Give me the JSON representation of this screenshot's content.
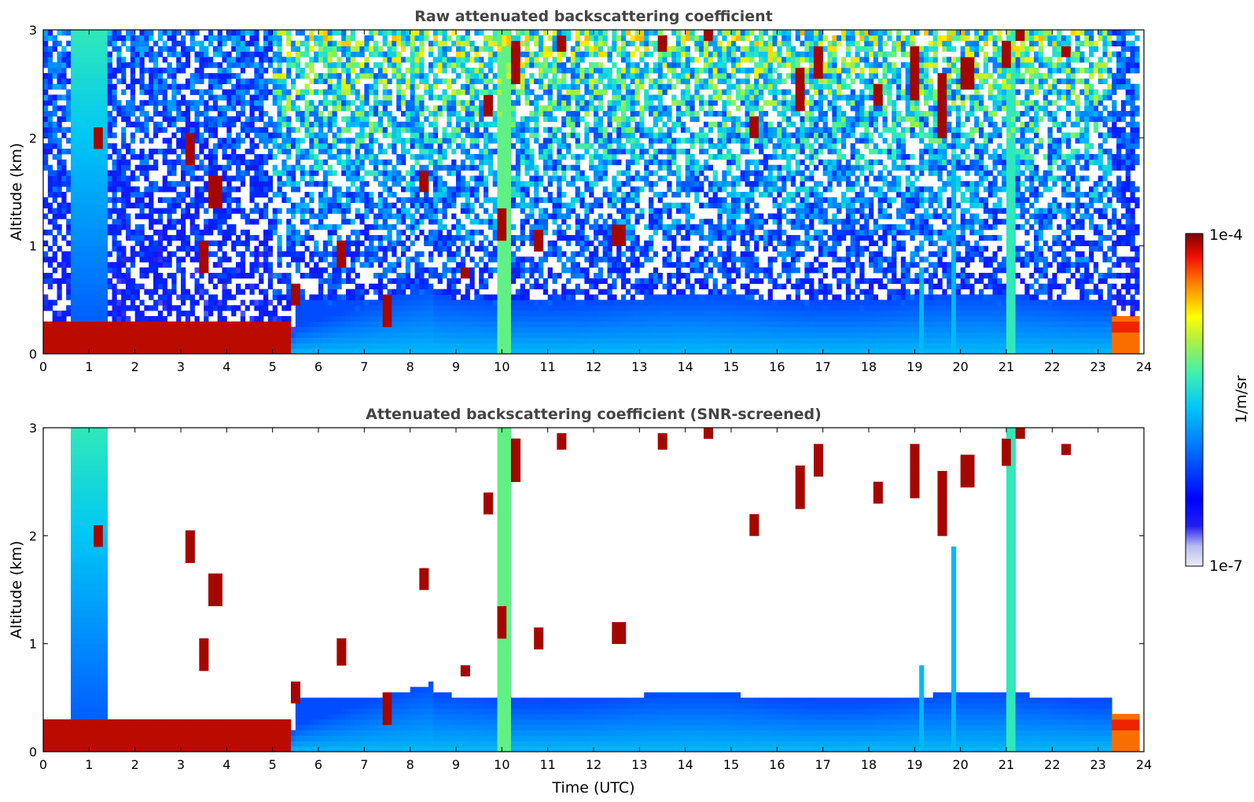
{
  "chart_data": [
    {
      "type": "heatmap",
      "title": "Raw attenuated backscattering coefficient",
      "xlabel": "",
      "ylabel": "Altitude (km)",
      "xlim": [
        0,
        24
      ],
      "ylim": [
        0,
        3
      ],
      "xticks": [
        "0",
        "1",
        "2",
        "3",
        "4",
        "5",
        "6",
        "7",
        "8",
        "9",
        "10",
        "11",
        "12",
        "13",
        "14",
        "15",
        "16",
        "17",
        "18",
        "19",
        "20",
        "21",
        "22",
        "23",
        "24"
      ],
      "yticks": [
        "0",
        "1",
        "2",
        "3"
      ],
      "screened": false,
      "layers": [
        {
          "kind": "surface-layer",
          "t_start": 0,
          "t_end": 5.4,
          "z_top": 0.3,
          "level": 0.95
        },
        {
          "kind": "aerosol-plume",
          "t_start": 0.65,
          "t_end": 1.35,
          "z_top": 3.0,
          "level": 0.45
        },
        {
          "kind": "aerosol-boundary",
          "t_start": 5.5,
          "t_end": 23.3,
          "z_top": 0.5,
          "level": 0.3
        },
        {
          "kind": "cloud-column",
          "t_start": 9.95,
          "t_end": 10.2,
          "z_top": 3.0,
          "level": 0.6
        },
        {
          "kind": "cloud-column",
          "t_start": 19.1,
          "t_end": 19.2,
          "z_top": 0.8,
          "level": 0.45
        },
        {
          "kind": "cloud-column",
          "t_start": 19.8,
          "t_end": 19.95,
          "z_top": 1.9,
          "level": 0.45
        },
        {
          "kind": "cloud-column",
          "t_start": 21.05,
          "t_end": 21.15,
          "z_top": 3.0,
          "level": 0.55
        },
        {
          "kind": "low-cloud",
          "t_start": 23.3,
          "t_end": 23.85,
          "z_top": 0.35,
          "level": 0.85
        }
      ],
      "clouds": [
        {
          "t": 1.2,
          "z": 2.0,
          "depth": 0.2
        },
        {
          "t": 3.2,
          "z": 1.9,
          "depth": 0.3
        },
        {
          "t": 3.75,
          "z": 1.5,
          "depth": 0.3
        },
        {
          "t": 3.5,
          "z": 0.9,
          "depth": 0.3
        },
        {
          "t": 5.5,
          "z": 0.55,
          "depth": 0.2
        },
        {
          "t": 6.5,
          "z": 0.95,
          "depth": 0.25
        },
        {
          "t": 7.5,
          "z": 0.4,
          "depth": 0.3
        },
        {
          "t": 8.3,
          "z": 1.6,
          "depth": 0.2
        },
        {
          "t": 9.2,
          "z": 0.75,
          "depth": 0.1
        },
        {
          "t": 9.7,
          "z": 2.3,
          "depth": 0.25
        },
        {
          "t": 10.3,
          "z": 2.7,
          "depth": 0.4
        },
        {
          "t": 10.0,
          "z": 1.2,
          "depth": 0.3
        },
        {
          "t": 10.8,
          "z": 1.05,
          "depth": 0.2
        },
        {
          "t": 11.3,
          "z": 2.9,
          "depth": 0.15
        },
        {
          "t": 12.55,
          "z": 1.1,
          "depth": 0.2
        },
        {
          "t": 13.5,
          "z": 2.9,
          "depth": 0.15
        },
        {
          "t": 14.5,
          "z": 2.95,
          "depth": 0.1
        },
        {
          "t": 15.5,
          "z": 2.1,
          "depth": 0.2
        },
        {
          "t": 16.5,
          "z": 2.45,
          "depth": 0.4
        },
        {
          "t": 16.9,
          "z": 2.7,
          "depth": 0.3
        },
        {
          "t": 18.2,
          "z": 2.4,
          "depth": 0.2
        },
        {
          "t": 19.0,
          "z": 2.6,
          "depth": 0.5
        },
        {
          "t": 19.6,
          "z": 2.3,
          "depth": 0.6
        },
        {
          "t": 20.15,
          "z": 2.6,
          "depth": 0.35
        },
        {
          "t": 21.0,
          "z": 2.8,
          "depth": 0.25
        },
        {
          "t": 21.3,
          "z": 2.95,
          "depth": 0.1
        },
        {
          "t": 22.3,
          "z": 2.8,
          "depth": 0.1
        }
      ]
    },
    {
      "type": "heatmap",
      "title": "Attenuated backscattering coefficient (SNR-screened)",
      "xlabel": "Time (UTC)",
      "ylabel": "Altitude (km)",
      "xlim": [
        0,
        24
      ],
      "ylim": [
        0,
        3
      ],
      "xticks": [
        "0",
        "1",
        "2",
        "3",
        "4",
        "5",
        "6",
        "7",
        "8",
        "9",
        "10",
        "11",
        "12",
        "13",
        "14",
        "15",
        "16",
        "17",
        "18",
        "19",
        "20",
        "21",
        "22",
        "23",
        "24"
      ],
      "yticks": [
        "0",
        "1",
        "2",
        "3"
      ],
      "screened": true
    }
  ],
  "colorbar": {
    "min_label": "1e-7",
    "max_label": "1e-4",
    "label": "1/m/sr",
    "colors": [
      "#ebecf6",
      "#c9cbee",
      "#8f92ea",
      "#0000f0",
      "#0040ff",
      "#0090ff",
      "#00d0f0",
      "#40f0b0",
      "#a0f050",
      "#f0f000",
      "#ffa000",
      "#ff4000",
      "#d00000",
      "#800000"
    ]
  }
}
